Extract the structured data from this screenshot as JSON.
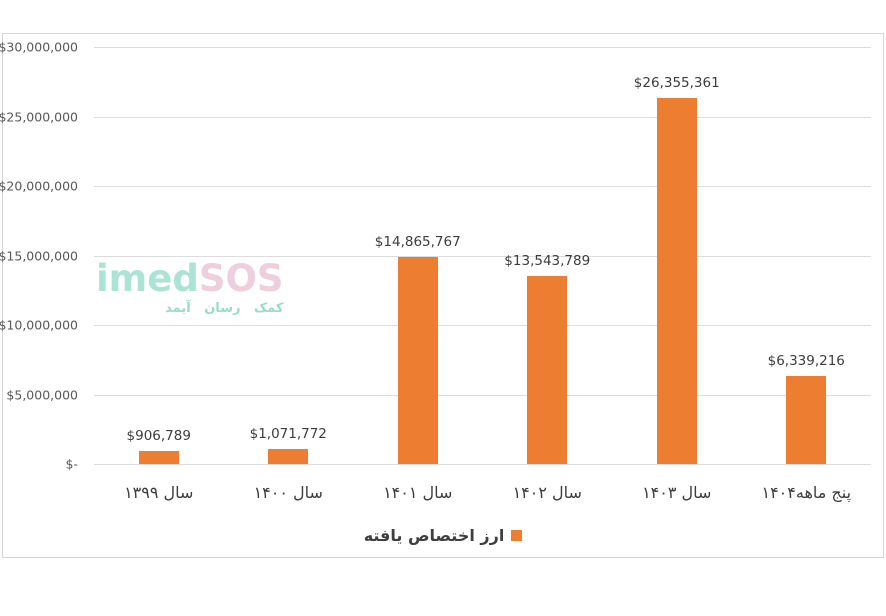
{
  "chart_data": {
    "type": "bar",
    "title": "",
    "categories": [
      "سال ۱۳۹۹",
      "سال ۱۴۰۰",
      "سال ۱۴۰۱",
      "سال ۱۴۰۲",
      "سال ۱۴۰۳",
      "پنج ماهه۱۴۰۴"
    ],
    "values": [
      906789,
      1071772,
      14865767,
      13543789,
      26355361,
      6339216
    ],
    "data_labels": [
      "$906,789",
      "$1,071,772",
      "$14,865,767",
      "$13,543,789",
      "$26,355,361",
      "$6,339,216"
    ],
    "y_ticks": [
      "$30,000,000",
      "$25,000,000",
      "$20,000,000",
      "$15,000,000",
      "$10,000,000",
      "$5,000,000",
      "$-"
    ],
    "ylim": [
      0,
      30000000
    ],
    "grid": true,
    "bar_color": "#ED7D31",
    "gridline_color": "#dcdcdc",
    "legend": {
      "label": "ارز اختصاص یافته",
      "position": "bottom",
      "swatch_color": "#ED7D31"
    }
  },
  "watermark": {
    "brand_first": "imed",
    "brand_second": "SOS",
    "brand_first_color": "#a3e0d0",
    "brand_second_color": "#eccada",
    "subtitle": "کمک رسان آیمد",
    "subtitle_color": "#8ed8c6"
  }
}
